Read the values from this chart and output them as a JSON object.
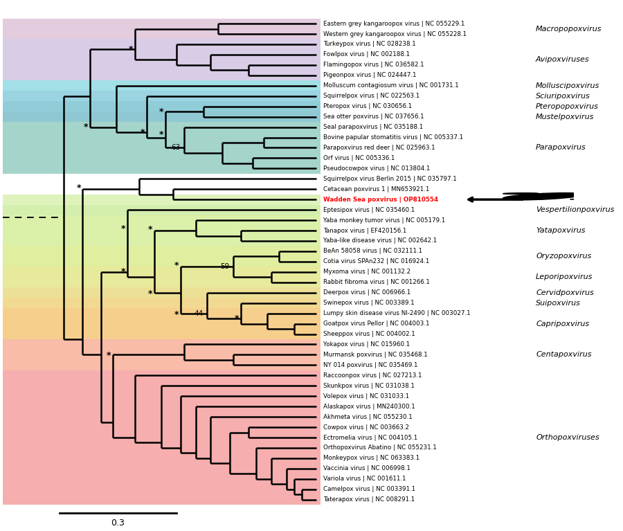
{
  "figsize": [
    9.0,
    7.67
  ],
  "dpi": 100,
  "taxa": [
    "Eastern grey kangaroopox virus | NC 055229.1",
    "Western grey kangaroopox virus | NC 055228.1",
    "Turkeypox virus | NC 028238.1",
    "Fowlpox virus | NC 002188.1",
    "Flamingopox virus | NC 036582.1",
    "Pigeonpox virus | NC 024447.1",
    "Molluscum contagiosum virus | NC 001731.1",
    "Squirrelpox virus | NC 022563.1",
    "Pteropox virus | NC 030656.1",
    "Sea otter poxvirus | NC 037656.1",
    "Seal parapoxvirus | NC 035188.1",
    "Bovine papular stomatitis virus | NC 005337.1",
    "Parapoxvirus red deer | NC 025963.1",
    "Orf virus | NC 005336.1",
    "Pseudocowpox virus | NC 013804.1",
    "Squirrelpox virus Berlin 2015 | NC 035797.1",
    "Cetacean poxvirus 1 | MN653921.1",
    "Wadden Sea poxvirus | OP810554",
    "Eptesipox virus | NC 035460.1",
    "Yaba monkey tumor virus | NC 005179.1",
    "Tanapox virus | EF420156.1",
    "Yaba-like disease virus | NC 002642.1",
    "BeAn 58058 virus | NC 032111.1",
    "Cotia virus SPAn232 | NC 016924.1",
    "Myxoma virus | NC 001132.2",
    "Rabbit fibroma virus | NC 001266.1",
    "Deerpox virus | NC 006966.1",
    "Swinepox virus | NC 003389.1",
    "Lumpy skin disease virus NI-2490 | NC 003027.1",
    "Goatpox virus Pellor | NC 004003.1",
    "Sheeppox virus | NC 004002.1",
    "Yokapox virus | NC 015960.1",
    "Murmansk poxvirus | NC 035468.1",
    "NY 014 poxvirus | NC 035469.1",
    "Raccoonpox virus | NC 027213.1",
    "Skunkpox virus | NC 031038.1",
    "Volepox virus | NC 031033.1",
    "Alaskapox virus | MN240300.1",
    "Akhmeta virus | NC 055230.1",
    "Cowpox virus | NC 003663.2",
    "Ectromelia virus | NC 004105.1",
    "Orthopoxvirus Abatino | NC 055231.1",
    "Monkeypox virus | NC 063383.1",
    "Vaccinia virus | NC 006998.1",
    "Variola virus | NC 001611.1",
    "Camelpox virus | NC 003391.1",
    "Taterapox virus | NC 008291.1"
  ],
  "wadden_index": 17,
  "band_data": [
    [
      0,
      1,
      "#d0aac8"
    ],
    [
      2,
      5,
      "#c0aad8"
    ],
    [
      6,
      6,
      "#62ccd8"
    ],
    [
      7,
      7,
      "#55b8cc"
    ],
    [
      8,
      8,
      "#48acbe"
    ],
    [
      9,
      9,
      "#44a4b4"
    ],
    [
      10,
      14,
      "#68b8a8"
    ],
    [
      17,
      17,
      "#c8ec90"
    ],
    [
      18,
      18,
      "#b8e478"
    ],
    [
      19,
      21,
      "#c4e870"
    ],
    [
      22,
      23,
      "#cce460"
    ],
    [
      24,
      25,
      "#d8dc58"
    ],
    [
      26,
      26,
      "#e0cc50"
    ],
    [
      27,
      27,
      "#e8c048"
    ],
    [
      28,
      30,
      "#f0b040"
    ],
    [
      31,
      33,
      "#f49070"
    ],
    [
      34,
      46,
      "#f07878"
    ]
  ],
  "genera": [
    [
      0.5,
      "Macropopoxvirus"
    ],
    [
      3.5,
      "Avipoxviruses"
    ],
    [
      6.0,
      "Molluscipoxvirus"
    ],
    [
      7.0,
      "Sciuripoxvirus"
    ],
    [
      8.0,
      "Pteropopoxvirus"
    ],
    [
      9.0,
      "Mustelpoxvirus"
    ],
    [
      12.0,
      "Parapoxvirus"
    ],
    [
      18.0,
      "Vespertilionpoxvirus"
    ],
    [
      20.0,
      "Yatapoxvirus"
    ],
    [
      22.5,
      "Oryzopoxvirus"
    ],
    [
      24.5,
      "Leporipoxvirus"
    ],
    [
      26.0,
      "Cervidpoxvirus"
    ],
    [
      27.0,
      "Suipoxvirus"
    ],
    [
      29.0,
      "Capripoxvirus"
    ],
    [
      32.0,
      "Centapoxvirus"
    ],
    [
      40.0,
      "Orthopoxviruses"
    ]
  ],
  "label_fontsize": 6.3,
  "genus_fontsize": 8.0,
  "lw": 1.8
}
